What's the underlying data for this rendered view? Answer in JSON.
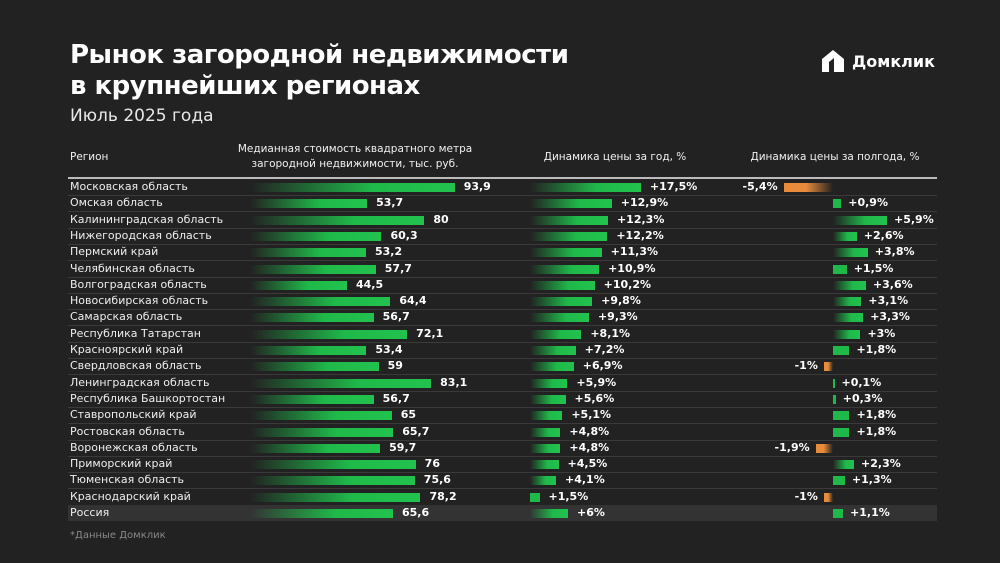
{
  "title_line1": "Рынок загородной недвижимости",
  "title_line2": "в крупнейших регионах",
  "subtitle": "Июль 2025 года",
  "logo_text": "Домклик",
  "footnote": "*Данные Домклик",
  "colors": {
    "background": "#222222",
    "positive": "#1fb94a",
    "negative": "#e88c3c"
  },
  "chart_data": {
    "type": "table",
    "columns": [
      "Регион",
      "Медианная стоимость квадратного метра загородной недвижимости, тыс. руб.",
      "Динамика цены за год, %",
      "Динамика цены за полгода, %"
    ],
    "rows": [
      {
        "region": "Московская область",
        "price": 93.9,
        "price_label": "93,9",
        "yoy": 17.5,
        "yoy_label": "+17,5%",
        "hoh": -5.4,
        "hoh_label": "-5,4%"
      },
      {
        "region": "Омская область",
        "price": 53.7,
        "price_label": "53,7",
        "yoy": 12.9,
        "yoy_label": "+12,9%",
        "hoh": 0.9,
        "hoh_label": "+0,9%"
      },
      {
        "region": "Калининградская область",
        "price": 80,
        "price_label": "80",
        "yoy": 12.3,
        "yoy_label": "+12,3%",
        "hoh": 5.9,
        "hoh_label": "+5,9%"
      },
      {
        "region": "Нижегородская область",
        "price": 60.3,
        "price_label": "60,3",
        "yoy": 12.2,
        "yoy_label": "+12,2%",
        "hoh": 2.6,
        "hoh_label": "+2,6%"
      },
      {
        "region": "Пермский край",
        "price": 53.2,
        "price_label": "53,2",
        "yoy": 11.3,
        "yoy_label": "+11,3%",
        "hoh": 3.8,
        "hoh_label": "+3,8%"
      },
      {
        "region": "Челябинская область",
        "price": 57.7,
        "price_label": "57,7",
        "yoy": 10.9,
        "yoy_label": "+10,9%",
        "hoh": 1.5,
        "hoh_label": "+1,5%"
      },
      {
        "region": "Волгоградская область",
        "price": 44.5,
        "price_label": "44,5",
        "yoy": 10.2,
        "yoy_label": "+10,2%",
        "hoh": 3.6,
        "hoh_label": "+3,6%"
      },
      {
        "region": "Новосибирская область",
        "price": 64.4,
        "price_label": "64,4",
        "yoy": 9.8,
        "yoy_label": "+9,8%",
        "hoh": 3.1,
        "hoh_label": "+3,1%"
      },
      {
        "region": "Самарская область",
        "price": 56.7,
        "price_label": "56,7",
        "yoy": 9.3,
        "yoy_label": "+9,3%",
        "hoh": 3.3,
        "hoh_label": "+3,3%"
      },
      {
        "region": "Республика Татарстан",
        "price": 72.1,
        "price_label": "72,1",
        "yoy": 8.1,
        "yoy_label": "+8,1%",
        "hoh": 3,
        "hoh_label": "+3%"
      },
      {
        "region": "Красноярский край",
        "price": 53.4,
        "price_label": "53,4",
        "yoy": 7.2,
        "yoy_label": "+7,2%",
        "hoh": 1.8,
        "hoh_label": "+1,8%"
      },
      {
        "region": "Свердловская область",
        "price": 59,
        "price_label": "59",
        "yoy": 6.9,
        "yoy_label": "+6,9%",
        "hoh": -1,
        "hoh_label": "-1%"
      },
      {
        "region": "Ленинградская область",
        "price": 83.1,
        "price_label": "83,1",
        "yoy": 5.9,
        "yoy_label": "+5,9%",
        "hoh": 0.1,
        "hoh_label": "+0,1%"
      },
      {
        "region": "Республика Башкортостан",
        "price": 56.7,
        "price_label": "56,7",
        "yoy": 5.6,
        "yoy_label": "+5,6%",
        "hoh": 0.3,
        "hoh_label": "+0,3%"
      },
      {
        "region": "Ставропольский край",
        "price": 65,
        "price_label": "65",
        "yoy": 5.1,
        "yoy_label": "+5,1%",
        "hoh": 1.8,
        "hoh_label": "+1,8%"
      },
      {
        "region": "Ростовская область",
        "price": 65.7,
        "price_label": "65,7",
        "yoy": 4.8,
        "yoy_label": "+4,8%",
        "hoh": 1.8,
        "hoh_label": "+1,8%"
      },
      {
        "region": "Воронежская область",
        "price": 59.7,
        "price_label": "59,7",
        "yoy": 4.8,
        "yoy_label": "+4,8%",
        "hoh": -1.9,
        "hoh_label": "-1,9%"
      },
      {
        "region": "Приморский край",
        "price": 76,
        "price_label": "76",
        "yoy": 4.5,
        "yoy_label": "+4,5%",
        "hoh": 2.3,
        "hoh_label": "+2,3%"
      },
      {
        "region": "Тюменская область",
        "price": 75.6,
        "price_label": "75,6",
        "yoy": 4.1,
        "yoy_label": "+4,1%",
        "hoh": 1.3,
        "hoh_label": "+1,3%"
      },
      {
        "region": "Краснодарский край",
        "price": 78.2,
        "price_label": "78,2",
        "yoy": 1.5,
        "yoy_label": "+1,5%",
        "hoh": -1,
        "hoh_label": "-1%"
      },
      {
        "region": "Россия",
        "price": 65.6,
        "price_label": "65,6",
        "yoy": 6,
        "yoy_label": "+6%",
        "hoh": 1.1,
        "hoh_label": "+1,1%",
        "total": true
      }
    ]
  }
}
